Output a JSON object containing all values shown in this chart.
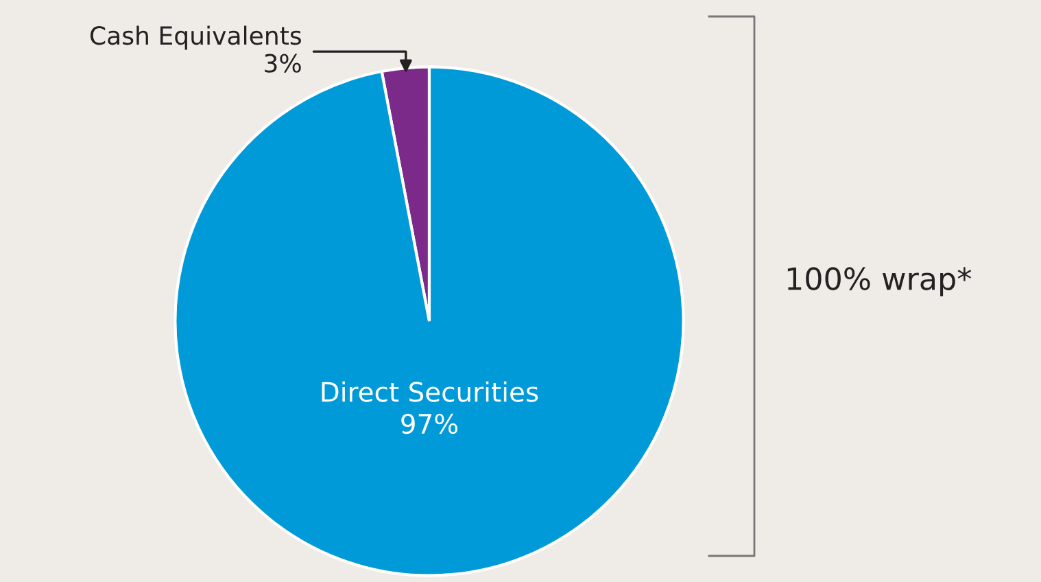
{
  "chart_data": {
    "type": "pie",
    "categories": [
      "Cash Equivalents",
      "Direct Securities"
    ],
    "values": [
      3,
      97
    ],
    "colors": [
      "#7b2a8a",
      "#009ad8"
    ],
    "value_labels": [
      "3%",
      "97%"
    ],
    "annotations": [
      "100% wrap*"
    ]
  }
}
